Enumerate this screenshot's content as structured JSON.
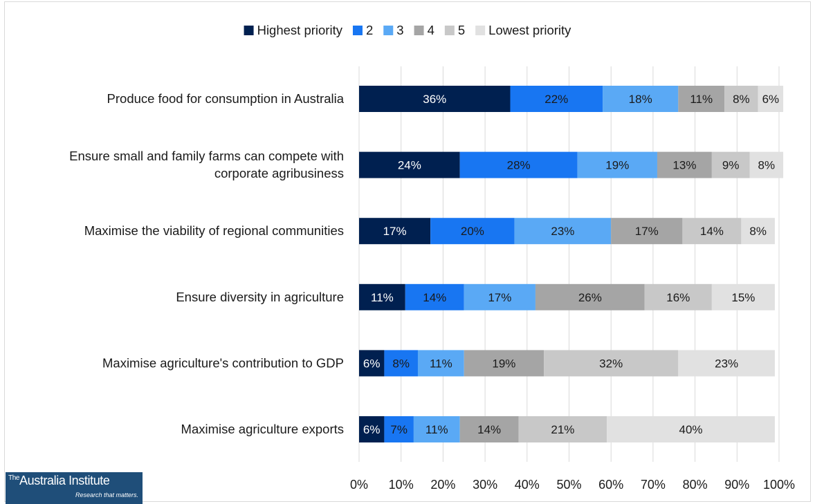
{
  "chart_data": {
    "type": "bar",
    "orientation": "horizontal",
    "stacked": true,
    "categories": [
      "Produce food for consumption in Australia",
      "Ensure small and family farms can compete with corporate agribusiness",
      "Maximise the viability of regional communities",
      "Ensure diversity in agriculture",
      "Maximise agriculture's contribution to GDP",
      "Maximise agriculture exports"
    ],
    "series": [
      {
        "name": "Highest priority",
        "color": "#002050",
        "label_color": "#ffffff",
        "values": [
          36,
          24,
          17,
          11,
          6,
          6
        ]
      },
      {
        "name": "2",
        "color": "#1876f2",
        "label_color": "#1a1a1a",
        "values": [
          22,
          28,
          20,
          14,
          8,
          7
        ]
      },
      {
        "name": "3",
        "color": "#5aa9f5",
        "label_color": "#1a1a1a",
        "values": [
          18,
          19,
          23,
          17,
          11,
          11
        ]
      },
      {
        "name": "4",
        "color": "#a5a5a5",
        "label_color": "#1a1a1a",
        "values": [
          11,
          13,
          17,
          26,
          19,
          14
        ]
      },
      {
        "name": "5",
        "color": "#c8c8c8",
        "label_color": "#1a1a1a",
        "values": [
          8,
          9,
          14,
          16,
          32,
          21
        ]
      },
      {
        "name": "Lowest priority",
        "color": "#e1e1e1",
        "label_color": "#1a1a1a",
        "values": [
          6,
          8,
          8,
          15,
          23,
          40
        ]
      }
    ],
    "value_suffix": "%",
    "xlim": [
      0,
      100
    ],
    "x_ticks": [
      "0%",
      "10%",
      "20%",
      "30%",
      "40%",
      "50%",
      "60%",
      "70%",
      "80%",
      "90%",
      "100%"
    ],
    "grid": true,
    "legend_position": "top"
  },
  "logo": {
    "name": "The Australia Institute",
    "tagline": "Research that matters."
  }
}
